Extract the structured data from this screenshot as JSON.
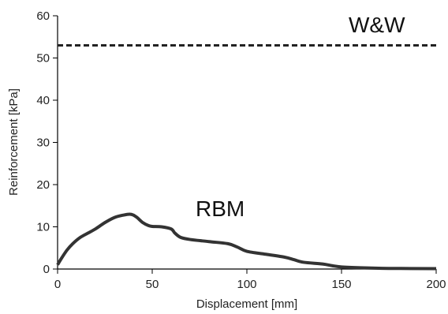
{
  "chart_data": {
    "type": "line",
    "xlabel": "Displacement [mm]",
    "ylabel": "Reinforcement [kPa]",
    "xlim": [
      0,
      200
    ],
    "ylim": [
      0,
      60
    ],
    "x_ticks": [
      0,
      50,
      100,
      150,
      200
    ],
    "y_ticks": [
      0,
      10,
      20,
      30,
      40,
      50,
      60
    ],
    "grid": false,
    "legend": "none",
    "series": [
      {
        "name": "W&W",
        "style": "dashed",
        "color": "#222222",
        "x": [
          0,
          200
        ],
        "y": [
          53,
          53
        ]
      },
      {
        "name": "RBM",
        "style": "solid",
        "color": "#333333",
        "x": [
          0,
          2,
          5,
          8,
          12,
          16,
          20,
          25,
          30,
          35,
          38,
          40,
          42,
          45,
          48,
          50,
          55,
          60,
          62,
          65,
          70,
          80,
          90,
          95,
          100,
          110,
          120,
          125,
          130,
          140,
          145,
          150,
          160,
          175,
          200
        ],
        "y": [
          1,
          2.5,
          4.5,
          6,
          7.5,
          8.5,
          9.5,
          11,
          12.2,
          12.8,
          13,
          12.8,
          12.2,
          11,
          10.3,
          10.1,
          10,
          9.5,
          8.5,
          7.5,
          7,
          6.5,
          6,
          5.2,
          4.2,
          3.5,
          2.8,
          2.2,
          1.6,
          1.2,
          0.8,
          0.5,
          0.3,
          0.15,
          0.1
        ]
      }
    ]
  }
}
